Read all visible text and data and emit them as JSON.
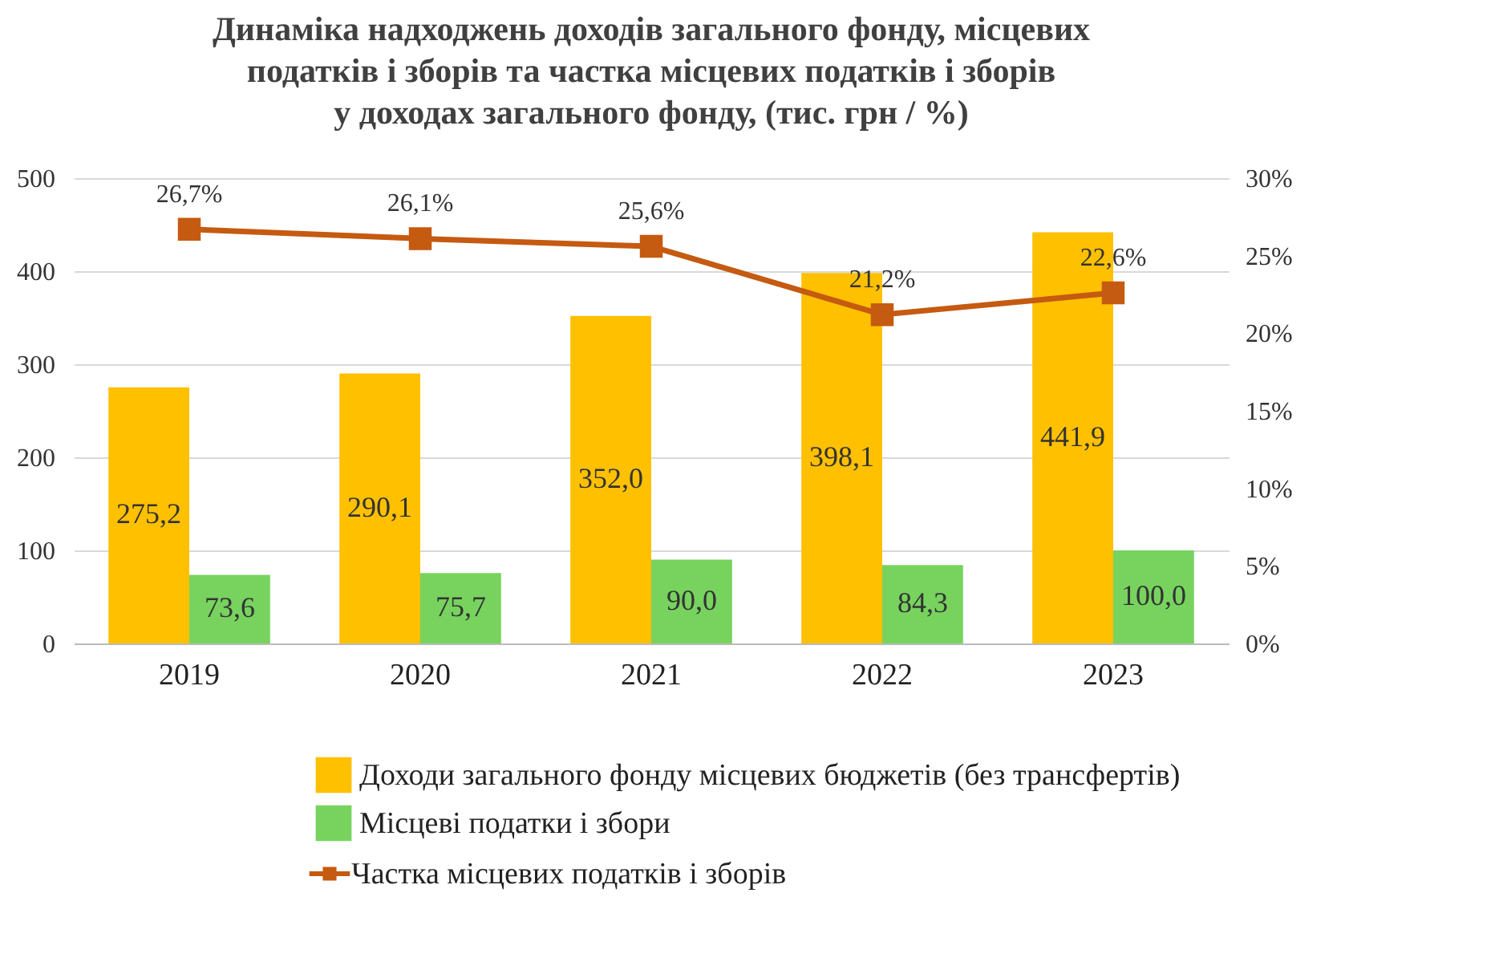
{
  "chart_data": {
    "type": "bar",
    "title": "Динаміка надходжень доходів загального фонду, місцевих\nподатків і зборів та частка місцевих податків і зборів\nу доходах загального фонду, (тис. грн / %)",
    "categories": [
      "2019",
      "2020",
      "2021",
      "2022",
      "2023"
    ],
    "series": [
      {
        "name": "Доходи загального фонду місцевих бюджетів (без трансфертів)",
        "color": "#ffc000",
        "values": [
          275.2,
          290.1,
          352.0,
          398.1,
          441.9
        ],
        "value_labels": [
          "275,2",
          "290,1",
          "352,0",
          "398,1",
          "441,9"
        ]
      },
      {
        "name": "Місцеві податки і збори",
        "color": "#77d35e",
        "values": [
          73.6,
          75.7,
          90.0,
          84.3,
          100.0
        ],
        "value_labels": [
          "73,6",
          "75,7",
          "90,0",
          "84,3",
          "100,0"
        ]
      },
      {
        "name": "Частка місцевих податків і зборів",
        "type": "line",
        "axis": "y2",
        "color": "#c55a11",
        "marker": "square",
        "values": [
          26.7,
          26.1,
          25.6,
          21.2,
          22.6
        ],
        "value_labels": [
          "26,7%",
          "26,1%",
          "25,6%",
          "21,2%",
          "22,6%"
        ]
      }
    ],
    "ylim": [
      0,
      500
    ],
    "yticks": [
      0,
      100,
      200,
      300,
      400,
      500
    ],
    "y2lim": [
      0,
      30
    ],
    "y2ticks": [
      {
        "value": 0,
        "label": "0%"
      },
      {
        "value": 5,
        "label": "5%"
      },
      {
        "value": 10,
        "label": "10%"
      },
      {
        "value": 15,
        "label": "15%"
      },
      {
        "value": 20,
        "label": "20%"
      },
      {
        "value": 25,
        "label": "25%"
      },
      {
        "value": 30,
        "label": "30%"
      }
    ],
    "grid": "y",
    "legend": "bottom"
  }
}
